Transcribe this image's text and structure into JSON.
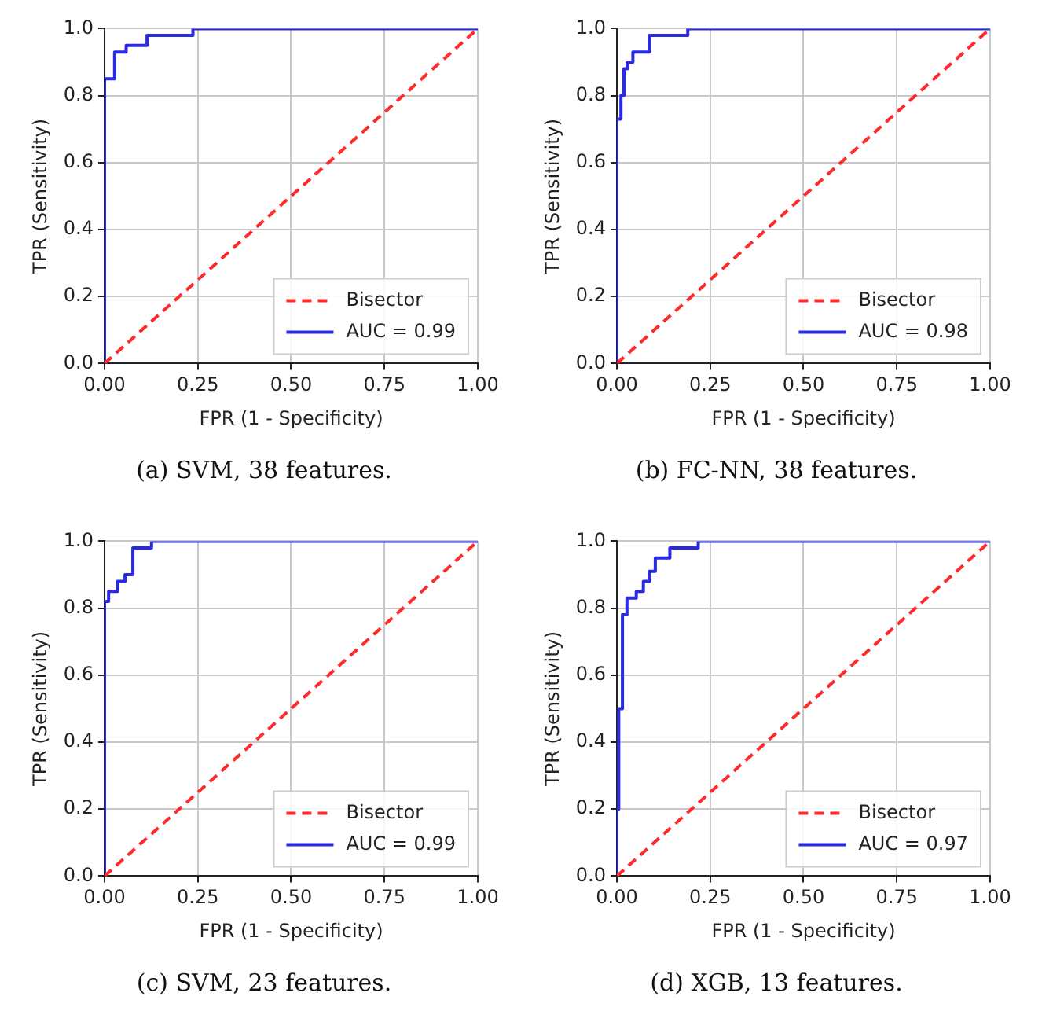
{
  "chart_data": [
    {
      "type": "line",
      "xlabel": "FPR (1 - Specificity)",
      "ylabel": "TPR (Sensitivity)",
      "annotations": [
        "(a) SVM, 38 features."
      ],
      "xlim": [
        0,
        1
      ],
      "ylim": [
        0,
        1
      ],
      "xticks": [
        {
          "value": 0,
          "label": "0.00"
        },
        {
          "value": 0.25,
          "label": "0.25"
        },
        {
          "value": 0.5,
          "label": "0.50"
        },
        {
          "value": 0.75,
          "label": "0.75"
        },
        {
          "value": 1,
          "label": "1.00"
        }
      ],
      "yticks": [
        {
          "value": 0,
          "label": "0.0"
        },
        {
          "value": 0.2,
          "label": "0.2"
        },
        {
          "value": 0.4,
          "label": "0.4"
        },
        {
          "value": 0.6,
          "label": "0.6"
        },
        {
          "value": 0.8,
          "label": "0.8"
        },
        {
          "value": 1,
          "label": "1.0"
        }
      ],
      "grid": true,
      "legend": "bottom right",
      "series": [
        {
          "name": "Bisector",
          "color": "#ff2a2a",
          "line_style": "dashed",
          "x": [
            0,
            1
          ],
          "values": [
            0,
            1
          ]
        },
        {
          "name": "AUC = 0.99",
          "color": "#2a2ae0",
          "line_style": "solid",
          "x": [
            0,
            0,
            0.027,
            0.027,
            0.058,
            0.058,
            0.114,
            0.114,
            0.237,
            0.237,
            1
          ],
          "values": [
            0,
            0.85,
            0.85,
            0.93,
            0.93,
            0.95,
            0.95,
            0.98,
            0.98,
            1,
            1
          ]
        }
      ]
    },
    {
      "type": "line",
      "xlabel": "FPR (1 - Specificity)",
      "ylabel": "TPR (Sensitivity)",
      "annotations": [
        "(b) FC-NN, 38 features."
      ],
      "xlim": [
        0,
        1
      ],
      "ylim": [
        0,
        1
      ],
      "xticks": [
        {
          "value": 0,
          "label": "0.00"
        },
        {
          "value": 0.25,
          "label": "0.25"
        },
        {
          "value": 0.5,
          "label": "0.50"
        },
        {
          "value": 0.75,
          "label": "0.75"
        },
        {
          "value": 1,
          "label": "1.00"
        }
      ],
      "yticks": [
        {
          "value": 0,
          "label": "0.0"
        },
        {
          "value": 0.2,
          "label": "0.2"
        },
        {
          "value": 0.4,
          "label": "0.4"
        },
        {
          "value": 0.6,
          "label": "0.6"
        },
        {
          "value": 0.8,
          "label": "0.8"
        },
        {
          "value": 1,
          "label": "1.0"
        }
      ],
      "grid": true,
      "legend": "bottom right",
      "series": [
        {
          "name": "Bisector",
          "color": "#ff2a2a",
          "line_style": "dashed",
          "x": [
            0,
            1
          ],
          "values": [
            0,
            1
          ]
        },
        {
          "name": "AUC = 0.98",
          "color": "#2a2ae0",
          "line_style": "solid",
          "x": [
            0,
            0,
            0.011,
            0.011,
            0.019,
            0.019,
            0.028,
            0.028,
            0.043,
            0.043,
            0.087,
            0.087,
            0.19,
            0.19,
            1
          ],
          "values": [
            0,
            0.73,
            0.73,
            0.8,
            0.8,
            0.88,
            0.88,
            0.9,
            0.9,
            0.93,
            0.93,
            0.98,
            0.98,
            1,
            1
          ]
        }
      ]
    },
    {
      "type": "line",
      "xlabel": "FPR (1 - Specificity)",
      "ylabel": "TPR (Sensitivity)",
      "annotations": [
        "(c) SVM, 23 features."
      ],
      "xlim": [
        0,
        1
      ],
      "ylim": [
        0,
        1
      ],
      "xticks": [
        {
          "value": 0,
          "label": "0.00"
        },
        {
          "value": 0.25,
          "label": "0.25"
        },
        {
          "value": 0.5,
          "label": "0.50"
        },
        {
          "value": 0.75,
          "label": "0.75"
        },
        {
          "value": 1,
          "label": "1.00"
        }
      ],
      "yticks": [
        {
          "value": 0,
          "label": "0.0"
        },
        {
          "value": 0.2,
          "label": "0.2"
        },
        {
          "value": 0.4,
          "label": "0.4"
        },
        {
          "value": 0.6,
          "label": "0.6"
        },
        {
          "value": 0.8,
          "label": "0.8"
        },
        {
          "value": 1,
          "label": "1.0"
        }
      ],
      "grid": true,
      "legend": "bottom right",
      "series": [
        {
          "name": "Bisector",
          "color": "#ff2a2a",
          "line_style": "dashed",
          "x": [
            0,
            1
          ],
          "values": [
            0,
            1
          ]
        },
        {
          "name": "AUC = 0.99",
          "color": "#2a2ae0",
          "line_style": "solid",
          "x": [
            0,
            0,
            0.011,
            0.011,
            0.035,
            0.035,
            0.055,
            0.055,
            0.076,
            0.076,
            0.126,
            0.126,
            1
          ],
          "values": [
            0,
            0.82,
            0.82,
            0.85,
            0.85,
            0.88,
            0.88,
            0.9,
            0.9,
            0.98,
            0.98,
            1,
            1
          ]
        }
      ]
    },
    {
      "type": "line",
      "xlabel": "FPR (1 - Specificity)",
      "ylabel": "TPR (Sensitivity)",
      "annotations": [
        "(d) XGB, 13 features."
      ],
      "xlim": [
        0,
        1
      ],
      "ylim": [
        0,
        1
      ],
      "xticks": [
        {
          "value": 0,
          "label": "0.00"
        },
        {
          "value": 0.25,
          "label": "0.25"
        },
        {
          "value": 0.5,
          "label": "0.50"
        },
        {
          "value": 0.75,
          "label": "0.75"
        },
        {
          "value": 1,
          "label": "1.00"
        }
      ],
      "yticks": [
        {
          "value": 0,
          "label": "0.0"
        },
        {
          "value": 0.2,
          "label": "0.2"
        },
        {
          "value": 0.4,
          "label": "0.4"
        },
        {
          "value": 0.6,
          "label": "0.6"
        },
        {
          "value": 0.8,
          "label": "0.8"
        },
        {
          "value": 1,
          "label": "1.0"
        }
      ],
      "grid": true,
      "legend": "bottom right",
      "series": [
        {
          "name": "Bisector",
          "color": "#ff2a2a",
          "line_style": "dashed",
          "x": [
            0,
            1
          ],
          "values": [
            0,
            1
          ]
        },
        {
          "name": "AUC = 0.97",
          "color": "#2a2ae0",
          "line_style": "solid",
          "x": [
            0,
            0,
            0.005,
            0.005,
            0.015,
            0.015,
            0.027,
            0.027,
            0.052,
            0.052,
            0.071,
            0.071,
            0.087,
            0.087,
            0.103,
            0.103,
            0.142,
            0.142,
            0.218,
            0.218,
            1
          ],
          "values": [
            0,
            0.2,
            0.2,
            0.5,
            0.5,
            0.78,
            0.78,
            0.83,
            0.83,
            0.85,
            0.85,
            0.88,
            0.88,
            0.91,
            0.91,
            0.95,
            0.95,
            0.98,
            0.98,
            1,
            1
          ]
        }
      ]
    }
  ]
}
